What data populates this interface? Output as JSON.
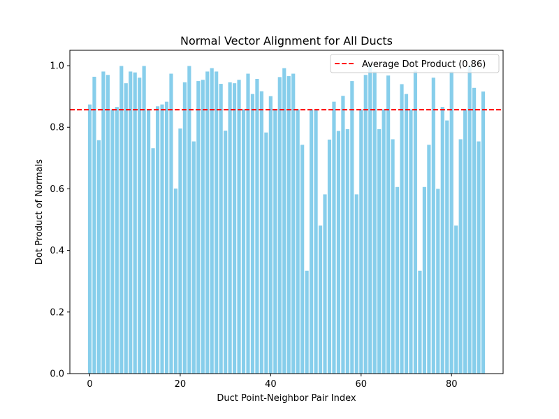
{
  "chart_data": {
    "type": "bar",
    "title": "Normal Vector Alignment for All Ducts",
    "xlabel": "Duct Point-Neighbor Pair Index",
    "ylabel": "Dot Product of Normals",
    "xlim": [
      -4.4,
      91.4
    ],
    "ylim": [
      0,
      1.05
    ],
    "xticks": [
      0,
      20,
      40,
      60,
      80
    ],
    "yticks": [
      0.0,
      0.2,
      0.4,
      0.6,
      0.8,
      1.0
    ],
    "ytick_labels": [
      "0.0",
      "0.2",
      "0.4",
      "0.6",
      "0.8",
      "1.0"
    ],
    "bar_color": "#87CEEB",
    "reference_line": {
      "label": "Average Dot Product (0.86)",
      "value": 0.857,
      "color": "#ff0000",
      "style": "dashed"
    },
    "legend": {
      "placement": "upper-right",
      "entries": [
        "Average Dot Product (0.86)"
      ]
    },
    "grid": false,
    "values": [
      0.874,
      0.964,
      0.758,
      0.981,
      0.97,
      0.858,
      0.866,
      0.999,
      0.943,
      0.981,
      0.978,
      0.961,
      0.999,
      0.858,
      0.732,
      0.868,
      0.874,
      0.883,
      0.974,
      0.601,
      0.796,
      0.946,
      0.999,
      0.754,
      0.95,
      0.954,
      0.981,
      0.992,
      0.981,
      0.941,
      0.789,
      0.946,
      0.943,
      0.954,
      0.858,
      0.974,
      0.908,
      0.957,
      0.917,
      0.783,
      0.901,
      0.858,
      0.963,
      0.992,
      0.966,
      0.974,
      0.858,
      0.743,
      0.334,
      0.858,
      0.858,
      0.481,
      0.582,
      0.76,
      0.883,
      0.788,
      0.902,
      0.794,
      0.95,
      0.582,
      0.858,
      0.97,
      0.999,
      0.981,
      0.794,
      0.858,
      0.968,
      0.761,
      0.606,
      0.94,
      0.908,
      0.858,
      0.984,
      0.334,
      0.606,
      0.743,
      0.961,
      0.6,
      0.866,
      0.822,
      0.981,
      0.481,
      0.761,
      0.858,
      0.999,
      0.928,
      0.754,
      0.916
    ]
  }
}
